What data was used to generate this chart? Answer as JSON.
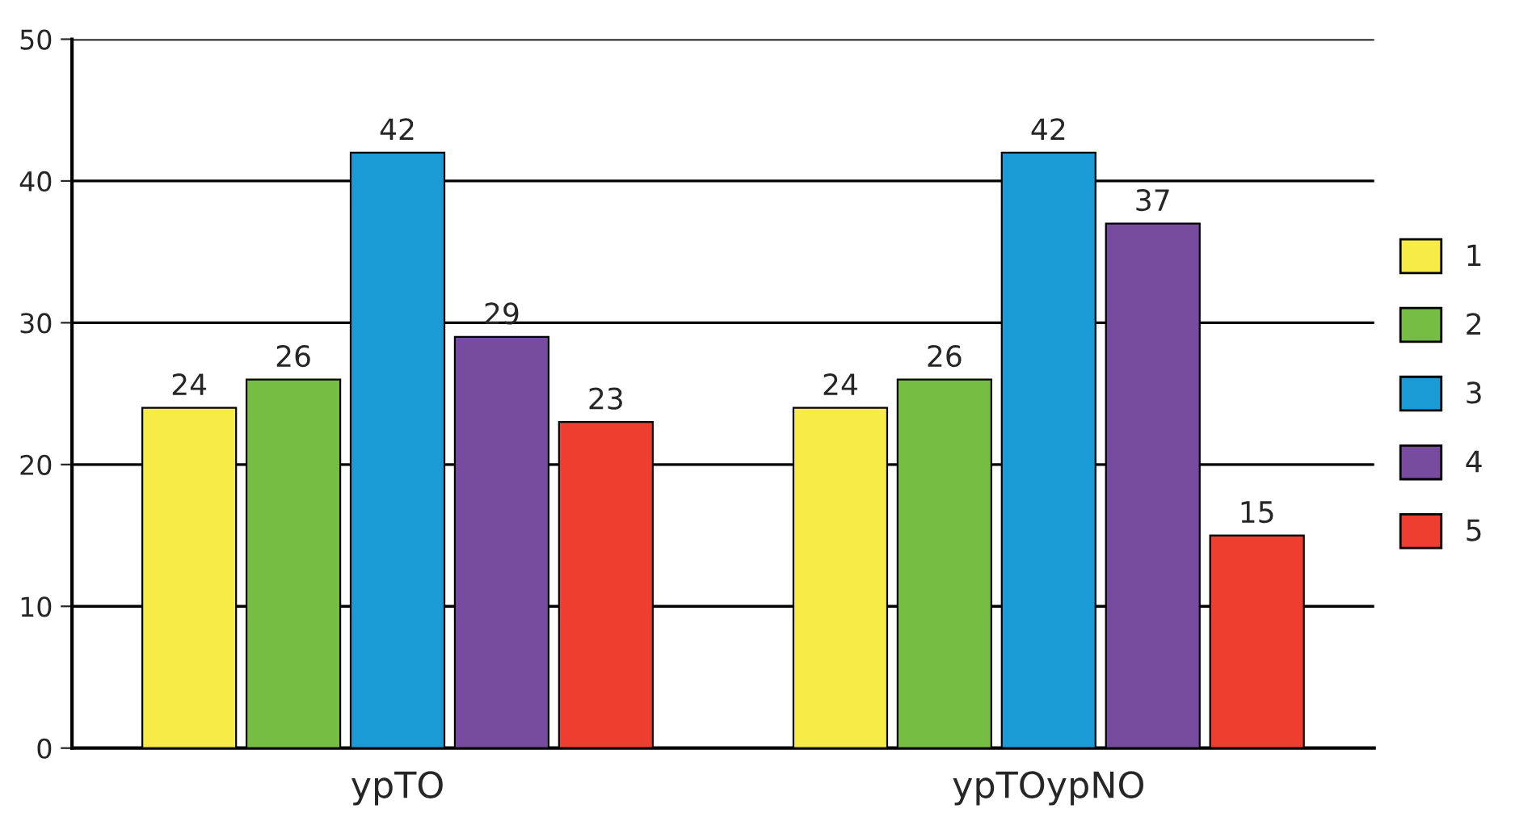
{
  "chart_data": {
    "type": "bar",
    "categories": [
      "ypTO",
      "ypTOypNO"
    ],
    "series": [
      {
        "name": "1",
        "color": "#f7ec47",
        "values": [
          24,
          24
        ]
      },
      {
        "name": "2",
        "color": "#76bd43",
        "values": [
          26,
          26
        ]
      },
      {
        "name": "3",
        "color": "#1b9bd6",
        "values": [
          42,
          42
        ]
      },
      {
        "name": "4",
        "color": "#774b9e",
        "values": [
          29,
          37
        ]
      },
      {
        "name": "5",
        "color": "#ee3e2f",
        "values": [
          23,
          15
        ]
      }
    ],
    "ylim": [
      0,
      50
    ],
    "yticks": [
      0,
      10,
      20,
      30,
      40,
      50
    ],
    "grid": "y",
    "legend": "right",
    "data_labels": true
  }
}
